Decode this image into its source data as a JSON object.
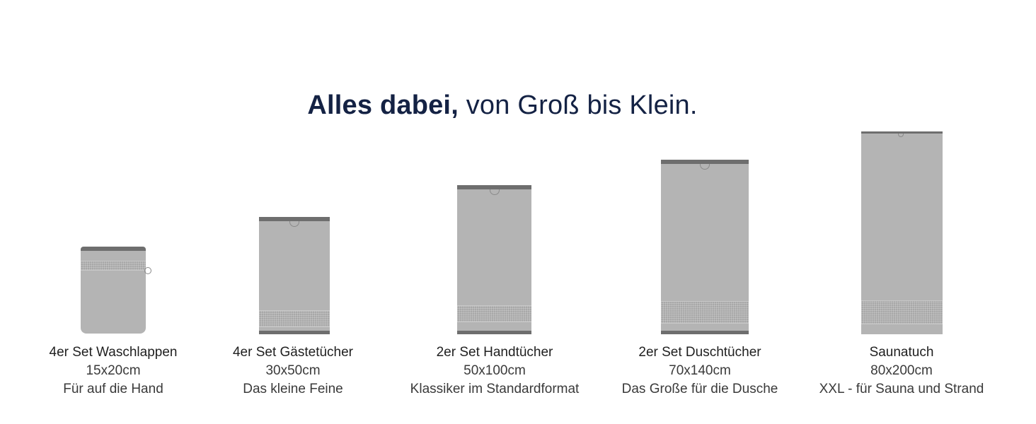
{
  "headline": {
    "bold": "Alles dabei,",
    "light": " von Groß bis Klein."
  },
  "products": [
    {
      "name": "4er Set Waschlappen",
      "size": "15x20cm",
      "description": "Für auf die Hand"
    },
    {
      "name": "4er Set Gästetücher",
      "size": "30x50cm",
      "description": "Das kleine Feine"
    },
    {
      "name": "2er Set Handtücher",
      "size": "50x100cm",
      "description": "Klassiker im Standardformat"
    },
    {
      "name": "2er Set Duschtücher",
      "size": "70x140cm",
      "description": "Das Große für die Dusche"
    },
    {
      "name": "Saunatuch",
      "size": "80x200cm",
      "description": "XXL - für Sauna und Strand"
    }
  ],
  "colors": {
    "headline": "#142244",
    "towel_fill": "#b4b4b4",
    "towel_trim": "#6e6e6e",
    "text": "#2b2b2b"
  },
  "icons": [
    "washcloth-icon",
    "guest-towel-icon",
    "hand-towel-icon",
    "shower-towel-icon",
    "sauna-towel-icon",
    "hanging-loop-icon"
  ]
}
